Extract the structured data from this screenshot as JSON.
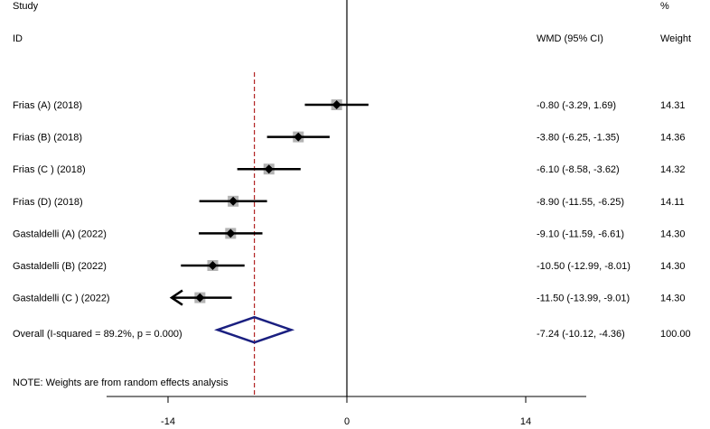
{
  "header": {
    "study_line1": "Study",
    "study_line2": "ID",
    "effect_label": "WMD (95% CI)",
    "weight_line1": "%",
    "weight_line2": "Weight"
  },
  "note": "NOTE: Weights are from random effects analysis",
  "colors": {
    "line": "#000000",
    "box": "#b3b3b3",
    "diamond": "#1a1f80",
    "overall_line": "#b22222"
  },
  "chart_data": {
    "type": "forest",
    "x_ticks": [
      "-14",
      "0",
      "14"
    ],
    "xlim": [
      -27.5,
      0
    ],
    "null_line": 0,
    "overall_line_value": -7.24,
    "studies": [
      {
        "label": "Frias (A) (2018)",
        "est": -0.8,
        "lo": -3.29,
        "hi": 1.69,
        "ci_text": "-0.80 (-3.29, 1.69)",
        "weight": 14.31,
        "weight_text": "14.31"
      },
      {
        "label": "Frias (B) (2018)",
        "est": -3.8,
        "lo": -6.25,
        "hi": -1.35,
        "ci_text": "-3.80 (-6.25, -1.35)",
        "weight": 14.36,
        "weight_text": "14.36"
      },
      {
        "label": "Frias (C ) (2018)",
        "est": -6.1,
        "lo": -8.58,
        "hi": -3.62,
        "ci_text": "-6.10 (-8.58, -3.62)",
        "weight": 14.32,
        "weight_text": "14.32"
      },
      {
        "label": "Frias (D) (2018)",
        "est": -8.9,
        "lo": -11.55,
        "hi": -6.25,
        "ci_text": "-8.90 (-11.55, -6.25)",
        "weight": 14.11,
        "weight_text": "14.11"
      },
      {
        "label": "Gastaldelli (A) (2022)",
        "est": -9.1,
        "lo": -11.59,
        "hi": -6.61,
        "ci_text": "-9.10 (-11.59, -6.61)",
        "weight": 14.3,
        "weight_text": "14.30"
      },
      {
        "label": "Gastaldelli (B) (2022)",
        "est": -10.5,
        "lo": -12.99,
        "hi": -8.01,
        "ci_text": "-10.50 (-12.99, -8.01)",
        "weight": 14.3,
        "weight_text": "14.30"
      },
      {
        "label": "Gastaldelli (C ) (2022)",
        "est": -11.5,
        "lo": -13.99,
        "hi": -9.01,
        "ci_text": "-11.50 (-13.99, -9.01)",
        "weight": 14.3,
        "weight_text": "14.30",
        "lo_truncated": true
      }
    ],
    "overall": {
      "label": "Overall  (I-squared = 89.2%, p = 0.000)",
      "est": -7.24,
      "lo": -10.12,
      "hi": -4.36,
      "ci_text": "-7.24 (-10.12, -4.36)",
      "weight_text": "100.00"
    }
  }
}
